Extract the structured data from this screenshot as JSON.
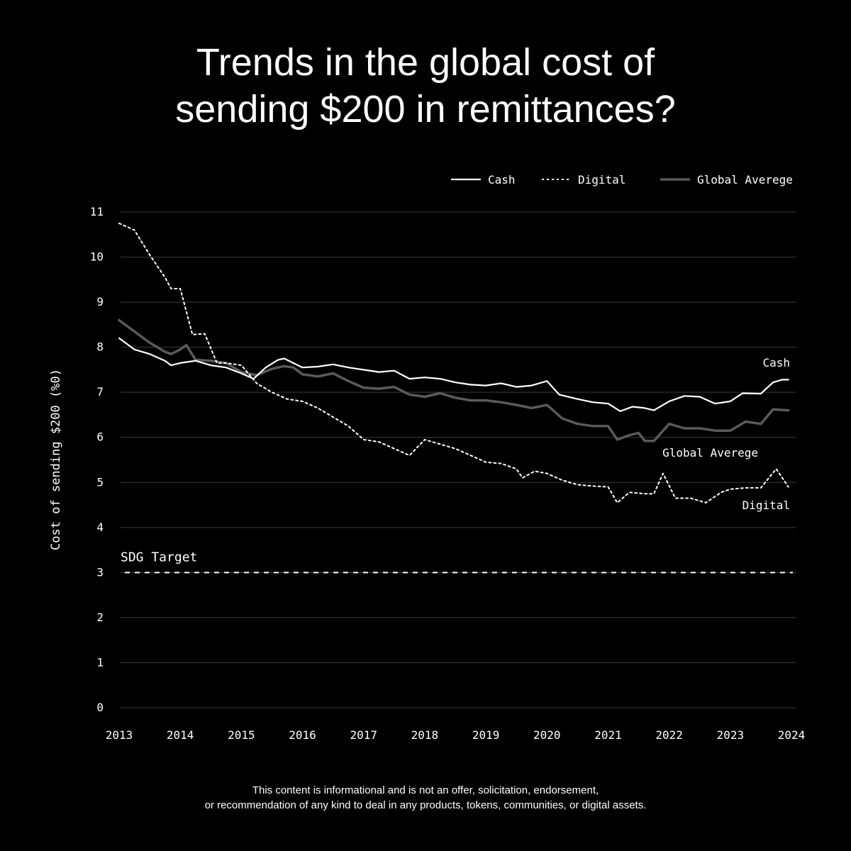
{
  "title": {
    "line1": "Trends in the global cost of",
    "line2": "sending $200 in remittances?"
  },
  "disclaimer": {
    "line1": "This content is informational and is not an offer, solicitation, endorsement,",
    "line2": "or recommendation of any kind to deal in any products, tokens, communities, or digital assets."
  },
  "colors": {
    "background": "#000000",
    "cash": "#ffffff",
    "digital": "#ffffff",
    "global_average": "#5a5a5a",
    "grid": "#3a3a3a",
    "text": "#ffffff"
  },
  "chart_data": {
    "type": "line",
    "title": "Trends in the global cost of sending $200 in remittances?",
    "xlabel": "",
    "ylabel": "Cost of sending $200 (%0)",
    "xlim": [
      2013,
      2024
    ],
    "ylim": [
      0,
      11
    ],
    "x_ticks": [
      "2013",
      "2014",
      "2015",
      "2016",
      "2017",
      "2018",
      "2019",
      "2020",
      "2021",
      "2022",
      "2023",
      "2024"
    ],
    "y_ticks": [
      "0",
      "1",
      "2",
      "3",
      "4",
      "5",
      "6",
      "7",
      "8",
      "9",
      "10",
      "11"
    ],
    "grid": true,
    "legend": {
      "position": "top-right",
      "entries": [
        "Cash",
        "Digital",
        "Global Averege"
      ]
    },
    "target": {
      "label": "SDG Target",
      "value": 3
    },
    "series": [
      {
        "name": "Cash",
        "style": "solid",
        "end_label": "Cash",
        "points": [
          [
            2013.0,
            8.2
          ],
          [
            2013.25,
            7.95
          ],
          [
            2013.5,
            7.85
          ],
          [
            2013.75,
            7.7
          ],
          [
            2013.85,
            7.6
          ],
          [
            2014.0,
            7.65
          ],
          [
            2014.25,
            7.7
          ],
          [
            2014.5,
            7.6
          ],
          [
            2014.75,
            7.55
          ],
          [
            2015.0,
            7.42
          ],
          [
            2015.2,
            7.3
          ],
          [
            2015.4,
            7.55
          ],
          [
            2015.6,
            7.72
          ],
          [
            2015.7,
            7.75
          ],
          [
            2015.85,
            7.65
          ],
          [
            2016.0,
            7.55
          ],
          [
            2016.25,
            7.57
          ],
          [
            2016.5,
            7.62
          ],
          [
            2016.75,
            7.55
          ],
          [
            2017.0,
            7.5
          ],
          [
            2017.25,
            7.45
          ],
          [
            2017.5,
            7.48
          ],
          [
            2017.75,
            7.3
          ],
          [
            2018.0,
            7.33
          ],
          [
            2018.25,
            7.3
          ],
          [
            2018.5,
            7.22
          ],
          [
            2018.75,
            7.17
          ],
          [
            2019.0,
            7.15
          ],
          [
            2019.25,
            7.2
          ],
          [
            2019.5,
            7.12
          ],
          [
            2019.75,
            7.15
          ],
          [
            2020.0,
            7.25
          ],
          [
            2020.2,
            6.95
          ],
          [
            2020.5,
            6.85
          ],
          [
            2020.75,
            6.78
          ],
          [
            2021.0,
            6.75
          ],
          [
            2021.2,
            6.58
          ],
          [
            2021.4,
            6.68
          ],
          [
            2021.6,
            6.65
          ],
          [
            2021.75,
            6.6
          ],
          [
            2022.0,
            6.8
          ],
          [
            2022.25,
            6.92
          ],
          [
            2022.5,
            6.9
          ],
          [
            2022.75,
            6.75
          ],
          [
            2023.0,
            6.8
          ],
          [
            2023.2,
            6.98
          ],
          [
            2023.5,
            6.97
          ],
          [
            2023.7,
            7.22
          ],
          [
            2023.85,
            7.28
          ],
          [
            2023.95,
            7.28
          ]
        ]
      },
      {
        "name": "Digital",
        "style": "dotted",
        "end_label": "Digital",
        "points": [
          [
            2013.0,
            10.75
          ],
          [
            2013.25,
            10.6
          ],
          [
            2013.5,
            10.05
          ],
          [
            2013.75,
            9.55
          ],
          [
            2013.85,
            9.3
          ],
          [
            2014.0,
            9.3
          ],
          [
            2014.2,
            8.28
          ],
          [
            2014.4,
            8.3
          ],
          [
            2014.6,
            7.65
          ],
          [
            2014.75,
            7.65
          ],
          [
            2015.0,
            7.6
          ],
          [
            2015.25,
            7.2
          ],
          [
            2015.5,
            7.0
          ],
          [
            2015.75,
            6.85
          ],
          [
            2016.0,
            6.8
          ],
          [
            2016.25,
            6.65
          ],
          [
            2016.5,
            6.45
          ],
          [
            2016.75,
            6.25
          ],
          [
            2017.0,
            5.95
          ],
          [
            2017.25,
            5.9
          ],
          [
            2017.5,
            5.75
          ],
          [
            2017.75,
            5.6
          ],
          [
            2018.0,
            5.95
          ],
          [
            2018.25,
            5.85
          ],
          [
            2018.5,
            5.75
          ],
          [
            2018.75,
            5.6
          ],
          [
            2019.0,
            5.45
          ],
          [
            2019.25,
            5.42
          ],
          [
            2019.5,
            5.3
          ],
          [
            2019.6,
            5.1
          ],
          [
            2019.8,
            5.25
          ],
          [
            2020.0,
            5.2
          ],
          [
            2020.25,
            5.05
          ],
          [
            2020.5,
            4.95
          ],
          [
            2020.75,
            4.92
          ],
          [
            2021.0,
            4.9
          ],
          [
            2021.15,
            4.55
          ],
          [
            2021.35,
            4.78
          ],
          [
            2021.6,
            4.75
          ],
          [
            2021.75,
            4.75
          ],
          [
            2021.9,
            5.2
          ],
          [
            2022.1,
            4.65
          ],
          [
            2022.35,
            4.65
          ],
          [
            2022.6,
            4.55
          ],
          [
            2022.85,
            4.78
          ],
          [
            2023.0,
            4.85
          ],
          [
            2023.25,
            4.88
          ],
          [
            2023.5,
            4.88
          ],
          [
            2023.75,
            5.3
          ],
          [
            2023.95,
            4.9
          ]
        ]
      },
      {
        "name": "Global Averege",
        "style": "solid",
        "end_label": "Global Averege",
        "points": [
          [
            2013.0,
            8.6
          ],
          [
            2013.25,
            8.35
          ],
          [
            2013.5,
            8.1
          ],
          [
            2013.75,
            7.9
          ],
          [
            2013.85,
            7.85
          ],
          [
            2014.0,
            7.95
          ],
          [
            2014.1,
            8.05
          ],
          [
            2014.25,
            7.72
          ],
          [
            2014.5,
            7.7
          ],
          [
            2014.75,
            7.65
          ],
          [
            2015.0,
            7.45
          ],
          [
            2015.25,
            7.38
          ],
          [
            2015.5,
            7.52
          ],
          [
            2015.7,
            7.58
          ],
          [
            2015.85,
            7.55
          ],
          [
            2016.0,
            7.4
          ],
          [
            2016.25,
            7.35
          ],
          [
            2016.5,
            7.42
          ],
          [
            2016.75,
            7.25
          ],
          [
            2017.0,
            7.1
          ],
          [
            2017.25,
            7.08
          ],
          [
            2017.5,
            7.12
          ],
          [
            2017.75,
            6.95
          ],
          [
            2018.0,
            6.9
          ],
          [
            2018.25,
            6.98
          ],
          [
            2018.5,
            6.88
          ],
          [
            2018.75,
            6.82
          ],
          [
            2019.0,
            6.82
          ],
          [
            2019.25,
            6.78
          ],
          [
            2019.5,
            6.72
          ],
          [
            2019.75,
            6.65
          ],
          [
            2020.0,
            6.72
          ],
          [
            2020.25,
            6.42
          ],
          [
            2020.5,
            6.3
          ],
          [
            2020.75,
            6.25
          ],
          [
            2021.0,
            6.25
          ],
          [
            2021.15,
            5.95
          ],
          [
            2021.35,
            6.05
          ],
          [
            2021.5,
            6.1
          ],
          [
            2021.6,
            5.92
          ],
          [
            2021.75,
            5.92
          ],
          [
            2022.0,
            6.3
          ],
          [
            2022.25,
            6.2
          ],
          [
            2022.5,
            6.2
          ],
          [
            2022.75,
            6.15
          ],
          [
            2023.0,
            6.15
          ],
          [
            2023.25,
            6.35
          ],
          [
            2023.5,
            6.3
          ],
          [
            2023.7,
            6.62
          ],
          [
            2023.95,
            6.6
          ]
        ]
      }
    ]
  }
}
